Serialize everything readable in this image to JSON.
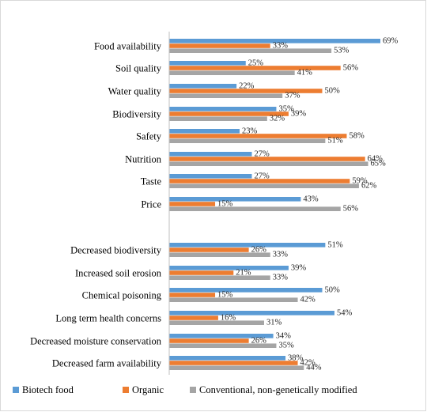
{
  "chart_data": {
    "type": "bar",
    "orientation": "horizontal",
    "title": "",
    "xlabel": "",
    "ylabel": "",
    "grid": false,
    "legend_position": "bottom",
    "categories": [
      "Food availability",
      "Soil quality",
      "Water quality",
      "Biodiversity",
      "Safety",
      "Nutrition",
      "Taste",
      "Price",
      "Decreased biodiversity",
      "Increased soil erosion",
      "Chemical poisoning",
      "Long term health concerns",
      "Decreased moisture conservation",
      "Decreased farm availability"
    ],
    "series": [
      {
        "name": "Biotech food",
        "color": "#5b9bd5",
        "values": [
          69,
          25,
          22,
          35,
          23,
          27,
          27,
          43,
          51,
          39,
          50,
          54,
          34,
          38
        ],
        "labels": [
          "69%",
          "25%",
          "22%",
          "35%",
          "23%",
          "27%",
          "27%",
          "43%",
          "51%",
          "39%",
          "50%",
          "54%",
          "34%",
          "38%"
        ]
      },
      {
        "name": "Organic",
        "color": "#ed7d31",
        "values": [
          33,
          56,
          50,
          39,
          58,
          64,
          59,
          15,
          26,
          21,
          15,
          16,
          26,
          42
        ],
        "labels": [
          "33%",
          "56%",
          "50%",
          "39%",
          "58%",
          "64%",
          "59%",
          "15%",
          "26%",
          "21%",
          "15%",
          "16%",
          "26%",
          "42%"
        ]
      },
      {
        "name": "Conventional, non-genetically modified",
        "color": "#a5a5a5",
        "values": [
          53,
          41,
          37,
          32,
          51,
          65,
          62,
          56,
          33,
          33,
          42,
          31,
          35,
          44
        ],
        "labels": [
          "53%",
          "41%",
          "37%",
          "32%",
          "51%",
          "65%",
          "62%",
          "56%",
          "33%",
          "33%",
          "42%",
          "31%",
          "35%",
          "44%"
        ]
      }
    ]
  }
}
